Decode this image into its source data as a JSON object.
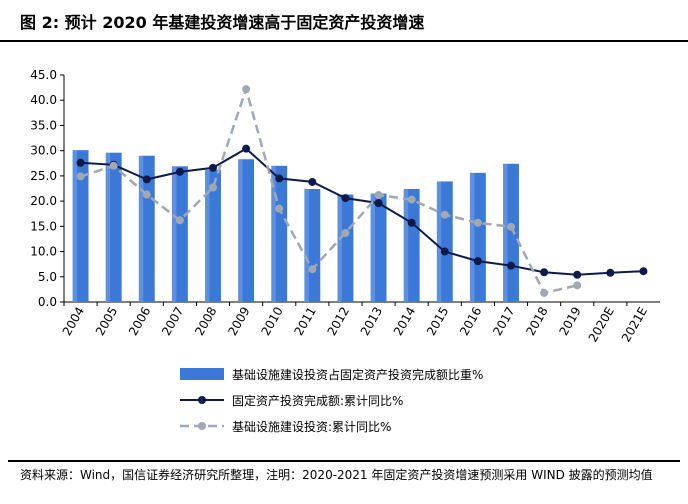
{
  "figure": {
    "title": "图 2:  预计 2020 年基建投资增速高于固定资产投资增速",
    "source": "资料来源：Wind，国信证券经济研究所整理，注明：2020-2021 年固定资产投资增速预测采用 WIND 披露的预测均值"
  },
  "chart_data": {
    "type": "bar+line",
    "categories": [
      "2004",
      "2005",
      "2006",
      "2007",
      "2008",
      "2009",
      "2010",
      "2011",
      "2012",
      "2013",
      "2014",
      "2015",
      "2016",
      "2017",
      "2018",
      "2019",
      "2020E",
      "2021E"
    ],
    "ylim": [
      0,
      45
    ],
    "yticks": [
      "0.0",
      "5.0",
      "10.0",
      "15.0",
      "20.0",
      "25.0",
      "30.0",
      "35.0",
      "40.0",
      "45.0"
    ],
    "grid": false,
    "legend_position": "bottom",
    "series": [
      {
        "name": "基础设施建设投资占固定资产投资完成额比重%",
        "type": "bar",
        "color": "#3b78d8",
        "values": [
          30.1,
          29.6,
          29.0,
          26.9,
          26.2,
          28.3,
          27.0,
          22.4,
          21.3,
          21.5,
          22.4,
          23.9,
          25.6,
          27.4,
          null,
          null,
          null,
          null
        ]
      },
      {
        "name": "固定资产投资完成额:累计同比%",
        "type": "line",
        "color": "#0d1b4c",
        "dash": false,
        "values": [
          27.6,
          27.2,
          24.3,
          25.8,
          26.6,
          30.4,
          24.5,
          23.8,
          20.6,
          19.6,
          15.7,
          10.0,
          8.1,
          7.2,
          5.9,
          5.4,
          5.8,
          6.1
        ]
      },
      {
        "name": "基础设施建设投资:累计同比%",
        "type": "line",
        "color": "#a0a8b4",
        "dash": true,
        "values": [
          24.9,
          27.0,
          21.3,
          16.2,
          22.7,
          42.2,
          18.5,
          6.5,
          13.7,
          21.2,
          20.3,
          17.3,
          15.7,
          14.9,
          1.8,
          3.3,
          null,
          null
        ]
      }
    ]
  }
}
